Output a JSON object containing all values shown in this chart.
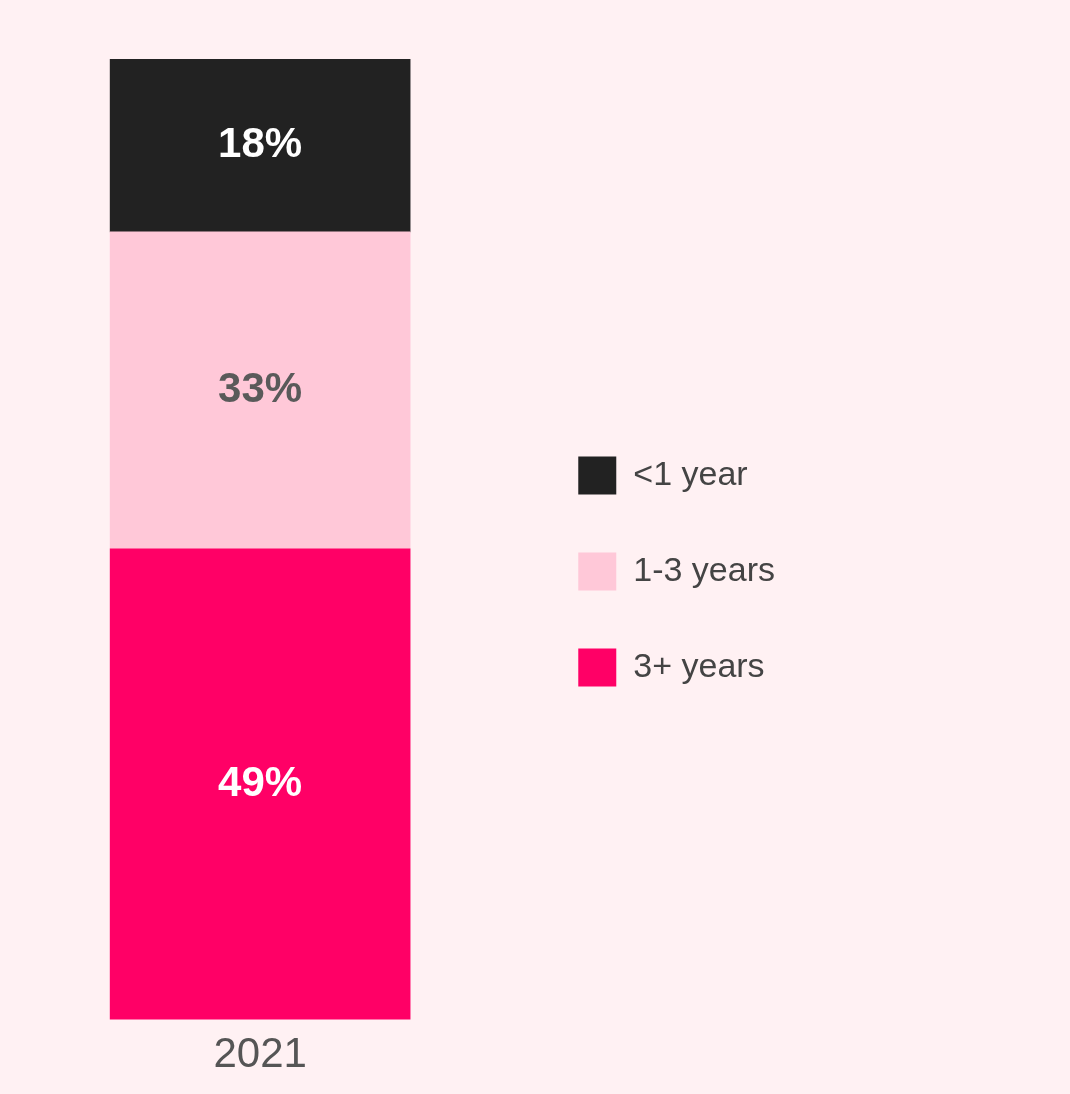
{
  "chart_data": {
    "type": "bar",
    "stacked": true,
    "categories": [
      "2021"
    ],
    "series": [
      {
        "name": "3+ years",
        "color": "#ff0066",
        "values": [
          49
        ],
        "value_labels": [
          "49%"
        ]
      },
      {
        "name": "1-3 years",
        "color": "#ffc8d8",
        "values": [
          33
        ],
        "value_labels": [
          "33%"
        ]
      },
      {
        "name": "<1 year",
        "color": "#222222",
        "values": [
          18
        ],
        "value_labels": [
          "18%"
        ]
      }
    ],
    "tick_labels": "x",
    "grid": false,
    "legend": "right"
  }
}
